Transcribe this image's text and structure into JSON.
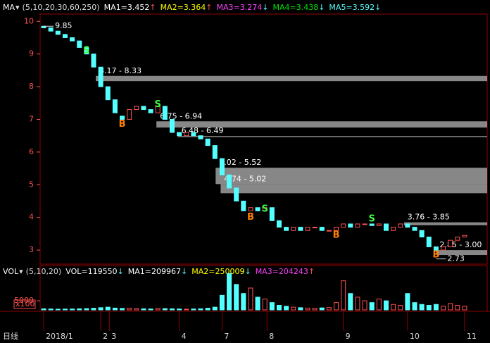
{
  "chart_data": [
    {
      "type": "candlestick",
      "legend_label": "MA",
      "params": "(5,10,20,30,60,250)",
      "legend": [
        {
          "text": "MA1=3.452",
          "arrow": "↑",
          "color": "#ffffff",
          "arrow_color": "#ff5050"
        },
        {
          "text": "MA2=3.364",
          "arrow": "↑",
          "color": "#ffff00",
          "arrow_color": "#ff5050"
        },
        {
          "text": "MA3=3.274",
          "arrow": "↓",
          "color": "#ff40ff",
          "arrow_color": "#54ffff"
        },
        {
          "text": "MA4=3.438",
          "arrow": "↓",
          "color": "#00e000",
          "arrow_color": "#54ffff"
        },
        {
          "text": "MA5=3.592",
          "arrow": "↓",
          "color": "#54ffff",
          "arrow_color": "#54ffff"
        }
      ],
      "xlim": [
        -0.5,
        59.5
      ],
      "ylim": [
        2.7,
        10.2
      ],
      "yticks": [
        3,
        4,
        5,
        6,
        7,
        8,
        9,
        10
      ],
      "open": [
        9.85,
        9.8,
        9.7,
        9.6,
        9.5,
        9.4,
        9.2,
        9.0,
        8.6,
        8.0,
        7.6,
        7.1,
        7.0,
        7.3,
        7.4,
        7.3,
        7.2,
        7.4,
        7.0,
        6.6,
        6.5,
        6.6,
        6.5,
        6.4,
        6.2,
        5.8,
        5.3,
        4.9,
        4.5,
        4.2,
        4.3,
        4.2,
        4.3,
        3.9,
        3.7,
        3.6,
        3.7,
        3.6,
        3.7,
        3.7,
        3.6,
        3.6,
        3.7,
        3.8,
        3.7,
        3.8,
        3.8,
        3.75,
        3.8,
        3.6,
        3.7,
        3.8,
        3.7,
        3.6,
        3.4,
        3.1,
        3.0,
        3.1,
        3.3,
        3.4
      ],
      "close": [
        9.8,
        9.7,
        9.6,
        9.5,
        9.4,
        9.2,
        9.0,
        8.6,
        8.0,
        7.6,
        7.2,
        7.0,
        7.3,
        7.4,
        7.3,
        7.2,
        7.4,
        7.0,
        6.6,
        6.5,
        6.6,
        6.5,
        6.4,
        6.2,
        5.8,
        5.3,
        4.9,
        4.5,
        4.2,
        4.3,
        4.2,
        4.3,
        3.9,
        3.7,
        3.6,
        3.7,
        3.6,
        3.7,
        3.7,
        3.6,
        3.6,
        3.7,
        3.8,
        3.7,
        3.8,
        3.8,
        3.75,
        3.8,
        3.6,
        3.7,
        3.8,
        3.7,
        3.6,
        3.4,
        3.1,
        3.0,
        3.1,
        3.3,
        3.4,
        3.45
      ],
      "annotations": [
        {
          "text": "9.85",
          "x": 0,
          "y": 9.85
        },
        {
          "text": "2.73",
          "x": 55,
          "y": 2.73
        }
      ],
      "zones": [
        {
          "label": "8.17 - 8.33",
          "low": 8.17,
          "high": 8.33,
          "start": 7.3
        },
        {
          "label": "6.75 - 6.94",
          "low": 6.75,
          "high": 6.94,
          "start": 15.8
        },
        {
          "label": "6.48 - 6.49",
          "low": 6.48,
          "high": 6.49,
          "start": 18.8
        },
        {
          "label": "5.02 - 5.52",
          "low": 5.02,
          "high": 5.52,
          "start": 24.1
        },
        {
          "label": "4.74 - 5.02",
          "low": 4.74,
          "high": 5.02,
          "start": 24.8
        },
        {
          "label": "3.76 - 3.85",
          "low": 3.76,
          "high": 3.85,
          "start": 50.5
        },
        {
          "label": "2.85 - 3.00",
          "low": 2.85,
          "high": 3.0,
          "start": 55
        }
      ],
      "signals": [
        {
          "text": "S",
          "x": 6,
          "y": 9.1,
          "color": "#40ff40"
        },
        {
          "text": "S",
          "x": 16,
          "y": 7.45,
          "color": "#40ff40"
        },
        {
          "text": "S",
          "x": 31,
          "y": 4.25,
          "color": "#40ff40"
        },
        {
          "text": "S",
          "x": 46,
          "y": 3.95,
          "color": "#40ff40"
        },
        {
          "text": "B",
          "x": 11,
          "y": 6.85,
          "color": "#ff8000"
        },
        {
          "text": "B",
          "x": 29,
          "y": 4.0,
          "color": "#ff8000"
        },
        {
          "text": "B",
          "x": 41,
          "y": 3.45,
          "color": "#ff8000"
        },
        {
          "text": "B",
          "x": 55,
          "y": 2.85,
          "color": "#ff8000"
        }
      ]
    },
    {
      "type": "bar",
      "legend_label": "VOL",
      "params": "(5,10,20)",
      "legend": [
        {
          "text": "VOL=119550",
          "arrow": "↓",
          "color": "#ffffff",
          "arrow_color": "#54ffff"
        },
        {
          "text": "MA1=209967",
          "arrow": "↓",
          "color": "#ffffff",
          "arrow_color": "#54ffff"
        },
        {
          "text": "MA2=250009",
          "arrow": "↓",
          "color": "#ffff00",
          "arrow_color": "#54ffff"
        },
        {
          "text": "MA3=204243",
          "arrow": "↑",
          "color": "#ff40ff",
          "arrow_color": "#ff5050"
        }
      ],
      "unit": "x100",
      "period": "日线",
      "xlim": [
        -0.5,
        59.5
      ],
      "ylim": [
        0,
        24000
      ],
      "yticks": [
        5000
      ],
      "xticks": [
        {
          "value": 0,
          "label": "2018/1"
        },
        {
          "value": 8,
          "label": "2"
        },
        {
          "value": 9.2,
          "label": "3"
        },
        {
          "value": 19,
          "label": "4"
        },
        {
          "value": 25,
          "label": "7"
        },
        {
          "value": 31.3,
          "label": "8"
        },
        {
          "value": 42,
          "label": "9"
        },
        {
          "value": 51,
          "label": "10"
        },
        {
          "value": 59,
          "label": "11"
        }
      ],
      "values": [
        600,
        500,
        400,
        450,
        500,
        600,
        700,
        900,
        1200,
        1500,
        1000,
        800,
        900,
        700,
        600,
        500,
        800,
        700,
        600,
        500,
        400,
        500,
        600,
        900,
        1500,
        8000,
        20000,
        14000,
        9000,
        12000,
        7000,
        6000,
        4000,
        2500,
        2000,
        1500,
        1200,
        1000,
        900,
        1100,
        1300,
        4000,
        16000,
        9000,
        7000,
        5000,
        4000,
        6000,
        5000,
        3000,
        2500,
        9000,
        4000,
        3000,
        2500,
        3000,
        2000,
        3500,
        2500,
        2000
      ]
    }
  ]
}
